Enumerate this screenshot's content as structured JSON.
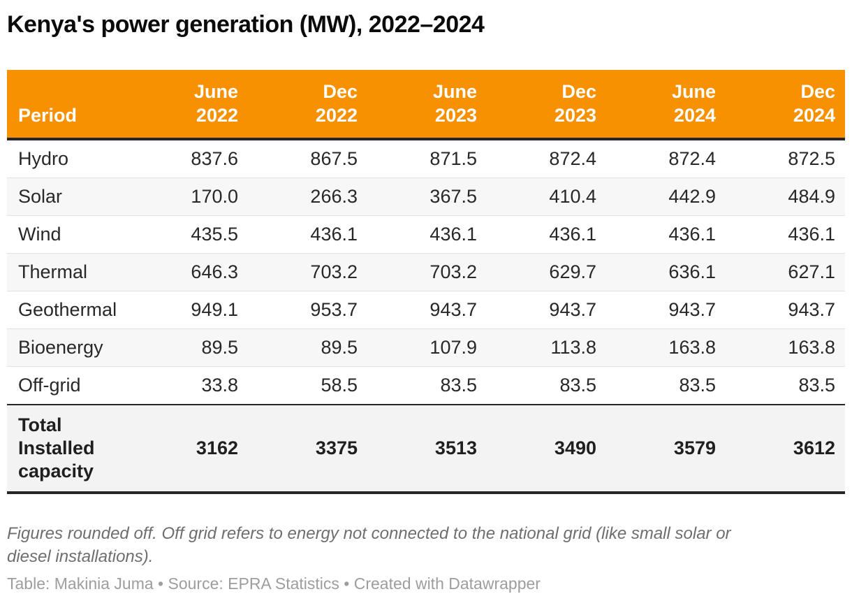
{
  "title": "Kenya's power generation (MW), 2022–2024",
  "colors": {
    "header_bg": "#f79102",
    "header_text": "#ffffff",
    "stripe_bg": "#f7f7f7",
    "total_bg": "#f3f3f3",
    "dark_border": "#262626",
    "row_separator": "#e2e2e2",
    "note_text": "#6e6e6e",
    "attribution_text": "#9d9d9d"
  },
  "table": {
    "period_header": "Period",
    "column_headers": [
      {
        "month": "June",
        "year": "2022"
      },
      {
        "month": "Dec",
        "year": "2022"
      },
      {
        "month": "June",
        "year": "2023"
      },
      {
        "month": "Dec",
        "year": "2023"
      },
      {
        "month": "June",
        "year": "2024"
      },
      {
        "month": "Dec",
        "year": "2024"
      }
    ],
    "rows": [
      {
        "label": "Hydro",
        "values": [
          "837.6",
          "867.5",
          "871.5",
          "872.4",
          "872.4",
          "872.5"
        ]
      },
      {
        "label": "Solar",
        "values": [
          "170.0",
          "266.3",
          "367.5",
          "410.4",
          "442.9",
          "484.9"
        ]
      },
      {
        "label": "Wind",
        "values": [
          "435.5",
          "436.1",
          "436.1",
          "436.1",
          "436.1",
          "436.1"
        ]
      },
      {
        "label": "Thermal",
        "values": [
          "646.3",
          "703.2",
          "703.2",
          "629.7",
          "636.1",
          "627.1"
        ]
      },
      {
        "label": "Geothermal",
        "values": [
          "949.1",
          "953.7",
          "943.7",
          "943.7",
          "943.7",
          "943.7"
        ]
      },
      {
        "label": "Bioenergy",
        "values": [
          "89.5",
          "89.5",
          "107.9",
          "113.8",
          "163.8",
          "163.8"
        ]
      },
      {
        "label": "Off-grid",
        "values": [
          "33.8",
          "58.5",
          "83.5",
          "83.5",
          "83.5",
          "83.5"
        ]
      }
    ],
    "total_row": {
      "label": "Total Installed capacity",
      "values": [
        "3162",
        "3375",
        "3513",
        "3490",
        "3579",
        "3612"
      ]
    }
  },
  "notes": {
    "note": "Figures rounded off. Off grid refers to energy not connected to the national grid (like small solar or diesel installations).",
    "attribution": "Table: Makinia Juma • Source: EPRA Statistics • Created with Datawrapper"
  },
  "chart_data": {
    "type": "table",
    "title": "Kenya's power generation (MW), 2022–2024",
    "unit": "MW",
    "categories": [
      "June 2022",
      "Dec 2022",
      "June 2023",
      "Dec 2023",
      "June 2024",
      "Dec 2024"
    ],
    "series": [
      {
        "name": "Hydro",
        "values": [
          837.6,
          867.5,
          871.5,
          872.4,
          872.4,
          872.5
        ]
      },
      {
        "name": "Solar",
        "values": [
          170.0,
          266.3,
          367.5,
          410.4,
          442.9,
          484.9
        ]
      },
      {
        "name": "Wind",
        "values": [
          435.5,
          436.1,
          436.1,
          436.1,
          436.1,
          436.1
        ]
      },
      {
        "name": "Thermal",
        "values": [
          646.3,
          703.2,
          703.2,
          629.7,
          636.1,
          627.1
        ]
      },
      {
        "name": "Geothermal",
        "values": [
          949.1,
          953.7,
          943.7,
          943.7,
          943.7,
          943.7
        ]
      },
      {
        "name": "Bioenergy",
        "values": [
          89.5,
          89.5,
          107.9,
          113.8,
          163.8,
          163.8
        ]
      },
      {
        "name": "Off-grid",
        "values": [
          33.8,
          58.5,
          83.5,
          83.5,
          83.5,
          83.5
        ]
      },
      {
        "name": "Total Installed capacity",
        "values": [
          3162,
          3375,
          3513,
          3490,
          3579,
          3612
        ]
      }
    ]
  }
}
